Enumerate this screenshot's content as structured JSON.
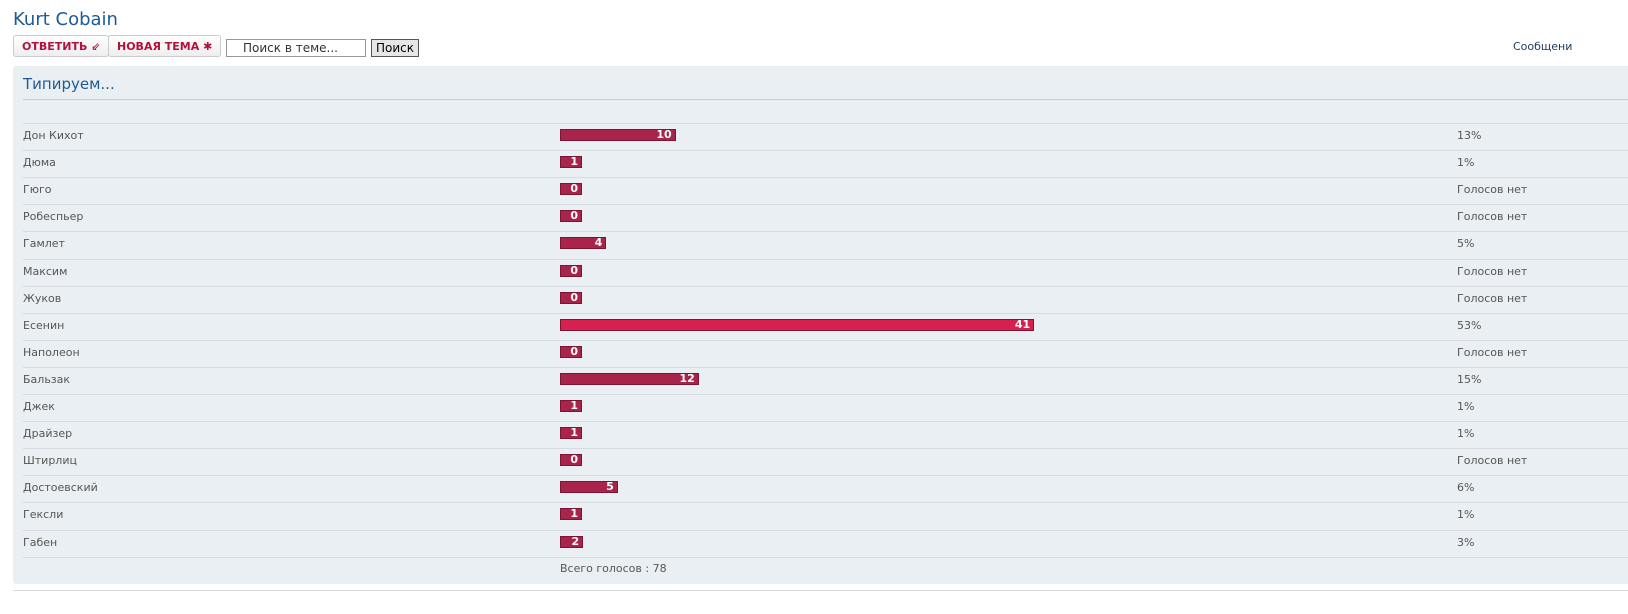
{
  "header": {
    "title": "Kurt Cobain",
    "reply": "ОТВЕТИТЬ",
    "new_topic": "НОВАЯ ТЕМА",
    "search_placeholder": "Поиск в теме...",
    "search_button": "Поиск",
    "messages": "Сообщени"
  },
  "poll": {
    "title": "Типируем...",
    "rows": [
      {
        "name": "Дон Кихот",
        "votes": 10,
        "percent": "13%"
      },
      {
        "name": "Дюма",
        "votes": 1,
        "percent": "1%"
      },
      {
        "name": "Гюго",
        "votes": 0,
        "percent": "Голосов нет"
      },
      {
        "name": "Робеспьер",
        "votes": 0,
        "percent": "Голосов нет"
      },
      {
        "name": "Гамлет",
        "votes": 4,
        "percent": "5%"
      },
      {
        "name": "Максим",
        "votes": 0,
        "percent": "Голосов нет"
      },
      {
        "name": "Жуков",
        "votes": 0,
        "percent": "Голосов нет"
      },
      {
        "name": "Есенин",
        "votes": 41,
        "percent": "53%"
      },
      {
        "name": "Наполеон",
        "votes": 0,
        "percent": "Голосов нет"
      },
      {
        "name": "Бальзак",
        "votes": 12,
        "percent": "15%"
      },
      {
        "name": "Джек",
        "votes": 1,
        "percent": "1%"
      },
      {
        "name": "Драйзер",
        "votes": 1,
        "percent": "1%"
      },
      {
        "name": "Штирлиц",
        "votes": 0,
        "percent": "Голосов нет"
      },
      {
        "name": "Достоевский",
        "votes": 5,
        "percent": "6%"
      },
      {
        "name": "Гексли",
        "votes": 1,
        "percent": "1%"
      },
      {
        "name": "Габен",
        "votes": 2,
        "percent": "3%"
      }
    ],
    "total_label": "Всего голосов :",
    "total": 78
  }
}
